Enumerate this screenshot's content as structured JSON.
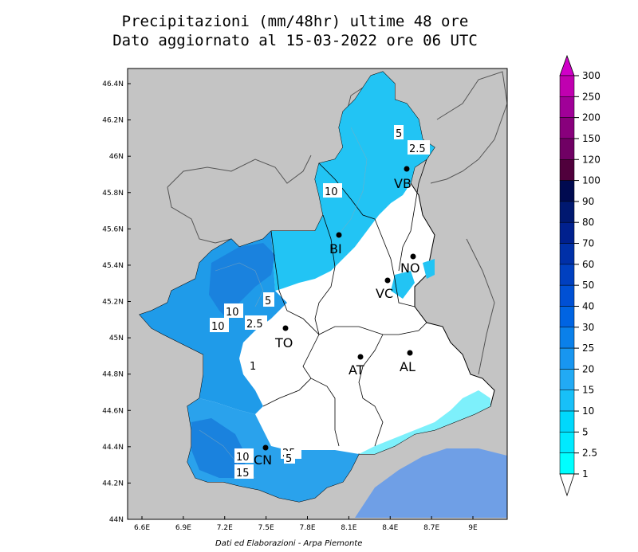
{
  "title": {
    "line1": "Precipitazioni (mm/48hr) ultime 48 ore",
    "line2": "Dato aggiornato al 15-03-2022 ore 06 UTC"
  },
  "credit": "Dati ed Elaborazioni - Arpa Piemonte",
  "axes": {
    "lat_ticks": [
      "46.4N",
      "46.2N",
      "46N",
      "45.8N",
      "45.6N",
      "45.4N",
      "45.2N",
      "45N",
      "44.8N",
      "44.6N",
      "44.4N",
      "44.2N",
      "44N"
    ],
    "lon_ticks": [
      "6.6E",
      "6.9E",
      "7.2E",
      "7.5E",
      "7.8E",
      "8.1E",
      "8.4E",
      "8.7E",
      "9E"
    ]
  },
  "colorbar": {
    "labels": [
      "300",
      "250",
      "200",
      "150",
      "120",
      "100",
      "90",
      "80",
      "70",
      "60",
      "50",
      "40",
      "30",
      "25",
      "20",
      "15",
      "10",
      "5",
      "2.5",
      "1"
    ],
    "colors": [
      "#c000b0",
      "#a00098",
      "#88007c",
      "#700064",
      "#50003c",
      "#000a50",
      "#001870",
      "#00208e",
      "#0030a8",
      "#0040c0",
      "#0050d4",
      "#0064e2",
      "#0a80ea",
      "#1896f0",
      "#22aaf4",
      "#18c0f8",
      "#00d8fc",
      "#00eaff",
      "#00ffff"
    ],
    "colors_note": "segments listed from top to bottom"
  },
  "map_colors": {
    "background_outside": "#c4c4c4",
    "sea": "#6f9fe6",
    "dry": "#ffffff",
    "light_precip": "#22c4f4",
    "medium_precip": "#1a8fe6",
    "heavy_precip": "#3aa8ec"
  },
  "contour_labels": [
    "5",
    "2.5",
    "10",
    "10",
    "10",
    "2.5",
    "5",
    "1",
    "10",
    "15",
    "25",
    "5"
  ],
  "cities": [
    {
      "code": "VB"
    },
    {
      "code": "BI"
    },
    {
      "code": "NO"
    },
    {
      "code": "VC"
    },
    {
      "code": "TO"
    },
    {
      "code": "AT"
    },
    {
      "code": "AL"
    },
    {
      "code": "CN"
    }
  ]
}
